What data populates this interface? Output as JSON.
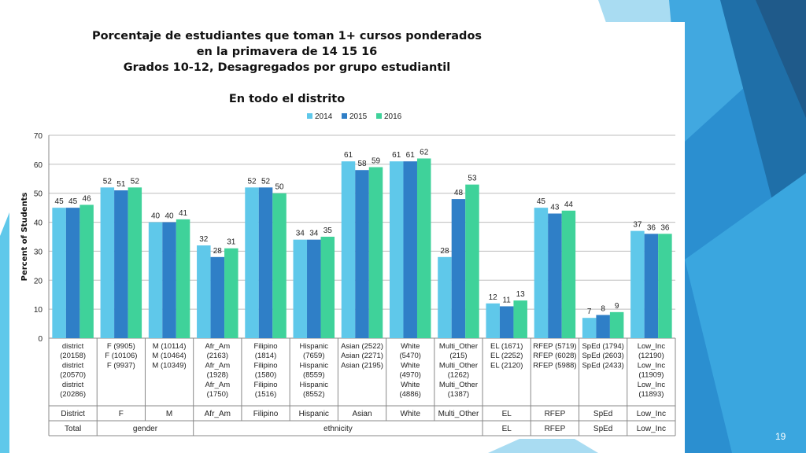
{
  "slide": {
    "page_number": "19"
  },
  "colors": {
    "series": [
      "#5fc8ea",
      "#2f7fc7",
      "#3fd29a"
    ],
    "background_blue": "#2b8fd0",
    "dark_blue": "#1f5a8a"
  },
  "chart_data": {
    "type": "bar",
    "title_lines": [
      "Porcentaje de estudiantes que toman 1+ cursos ponderados",
      "en la primavera de 14 15 16",
      "Grados 10-12, Desagregados por grupo estudiantil"
    ],
    "subtitle": "En todo el distrito",
    "ylabel": "Percent of Students",
    "xlabel": "",
    "ylim": [
      0,
      70
    ],
    "yticks": [
      0,
      10,
      20,
      30,
      40,
      50,
      60,
      70
    ],
    "legend_position": "top",
    "grid": true,
    "series": [
      {
        "name": "2014",
        "values": [
          45,
          52,
          40,
          32,
          52,
          34,
          61,
          61,
          28,
          12,
          45,
          7,
          37
        ]
      },
      {
        "name": "2015",
        "values": [
          45,
          51,
          40,
          28,
          52,
          34,
          58,
          61,
          48,
          11,
          43,
          8,
          36
        ]
      },
      {
        "name": "2016",
        "values": [
          46,
          52,
          41,
          31,
          50,
          35,
          59,
          62,
          53,
          13,
          44,
          9,
          36
        ]
      }
    ],
    "category_detail_lines": [
      [
        "district",
        "(20158)",
        "district",
        "(20570)",
        "district",
        "(20286)"
      ],
      [
        "F (9905)",
        "F (10106)",
        "F (9937)"
      ],
      [
        "M (10114)",
        "M (10464)",
        "M (10349)"
      ],
      [
        "Afr_Am",
        "(2163)",
        "Afr_Am",
        "(1928)",
        "Afr_Am",
        "(1750)"
      ],
      [
        "Filipino",
        "(1814)",
        "Filipino",
        "(1580)",
        "Filipino",
        "(1516)"
      ],
      [
        "Hispanic",
        "(7659)",
        "Hispanic",
        "(8559)",
        "Hispanic",
        "(8552)"
      ],
      [
        "Asian (2522)",
        "Asian (2271)",
        "Asian (2195)"
      ],
      [
        "White",
        "(5470)",
        "White",
        "(4970)",
        "White",
        "(4886)"
      ],
      [
        "Multi_Other",
        "(215)",
        "Multi_Other",
        "(1262)",
        "Multi_Other",
        "(1387)"
      ],
      [
        "EL (1671)",
        "EL (2252)",
        "EL (2120)"
      ],
      [
        "RFEP (5719)",
        "RFEP (6028)",
        "RFEP (5988)"
      ],
      [
        "SpEd (1794)",
        "SpEd (2603)",
        "SpEd (2433)"
      ],
      [
        "Low_Inc",
        "(12190)",
        "Low_Inc",
        "(11909)",
        "Low_Inc",
        "(11893)"
      ]
    ],
    "categories": [
      "District",
      "F",
      "M",
      "Afr_Am",
      "Filipino",
      "Hispanic",
      "Asian",
      "White",
      "Multi_Other",
      "EL",
      "RFEP",
      "SpEd",
      "Low_Inc"
    ],
    "groups": [
      {
        "label": "Total",
        "span": 1
      },
      {
        "label": "gender",
        "span": 2
      },
      {
        "label": "ethnicity",
        "span": 6
      },
      {
        "label": "EL",
        "span": 1
      },
      {
        "label": "RFEP",
        "span": 1
      },
      {
        "label": "SpEd",
        "span": 1
      },
      {
        "label": "Low_Inc",
        "span": 1
      }
    ]
  }
}
